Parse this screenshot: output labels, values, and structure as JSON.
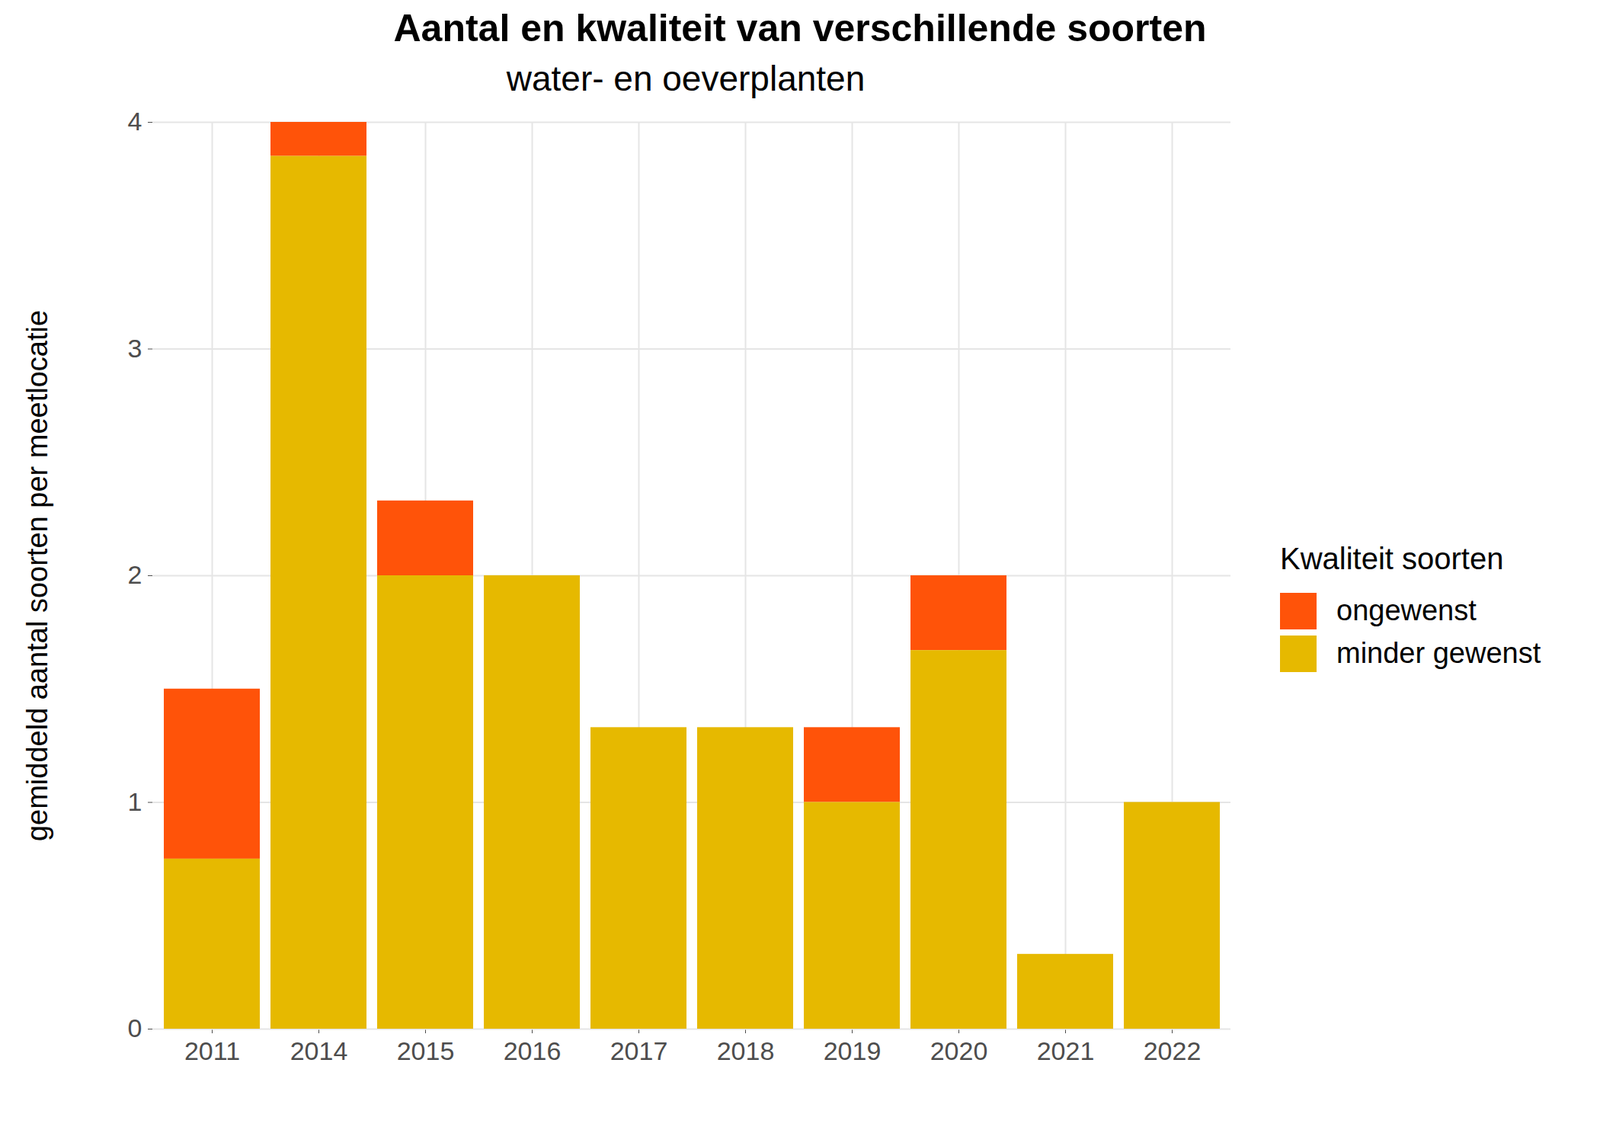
{
  "chart_data": {
    "type": "bar",
    "title": "Aantal en kwaliteit van verschillende soorten",
    "subtitle": "water- en oeverplanten",
    "y_label": "gemiddeld aantal soorten per meetlocatie",
    "legend_title": "Kwaliteit soorten",
    "categories": [
      "2011",
      "2014",
      "2015",
      "2016",
      "2017",
      "2018",
      "2019",
      "2020",
      "2021",
      "2022"
    ],
    "series": [
      {
        "name": "ongewenst",
        "color": "#FF5309",
        "values": [
          0.75,
          0.15,
          0.33,
          0,
          0,
          0,
          0.33,
          0.33,
          0,
          0
        ]
      },
      {
        "name": "minder gewenst",
        "color": "#E6B900",
        "values": [
          0.75,
          3.85,
          2.0,
          2.0,
          1.33,
          1.33,
          1.0,
          1.67,
          0.33,
          1.0
        ]
      }
    ],
    "stacked": true,
    "ylim": [
      0,
      4
    ],
    "yticks": [
      0,
      1,
      2,
      3,
      4
    ],
    "grid": true,
    "legend": "right"
  }
}
